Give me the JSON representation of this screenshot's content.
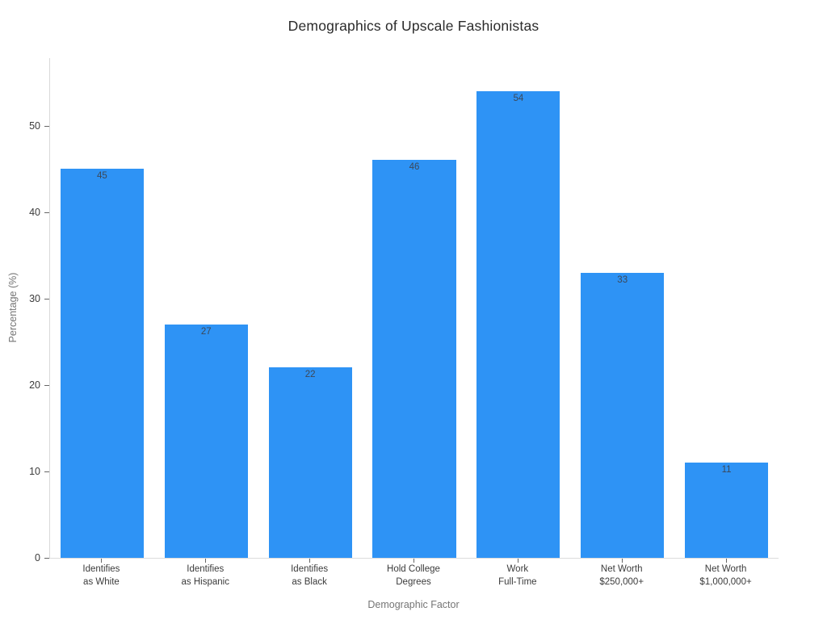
{
  "chart_data": {
    "type": "bar",
    "title": "Demographics of Upscale Fashionistas",
    "xlabel": "Demographic Factor",
    "ylabel": "Percentage (%)",
    "categories": [
      "Identifies\nas White",
      "Identifies\nas Hispanic",
      "Identifies\nas Black",
      "Hold College\nDegrees",
      "Work\nFull-Time",
      "Net Worth\n$250,000+",
      "Net Worth\n$1,000,000+"
    ],
    "values": [
      45,
      27,
      22,
      46,
      54,
      33,
      11
    ],
    "value_labels": [
      "45",
      "27",
      "22",
      "46",
      "54",
      "33",
      "11"
    ],
    "yticks": [
      0,
      10,
      20,
      30,
      40,
      50
    ],
    "ylim": [
      0,
      57.8
    ],
    "grid": false,
    "legend": null,
    "colors": {
      "bar": "#2e93f5",
      "bar_value_label": "#3c4858",
      "tick_label": "#3b3b3b",
      "axis_title": "#757575",
      "title": "#2b2b2b",
      "spine": "#d9d9d9",
      "background": "#ffffff"
    }
  }
}
